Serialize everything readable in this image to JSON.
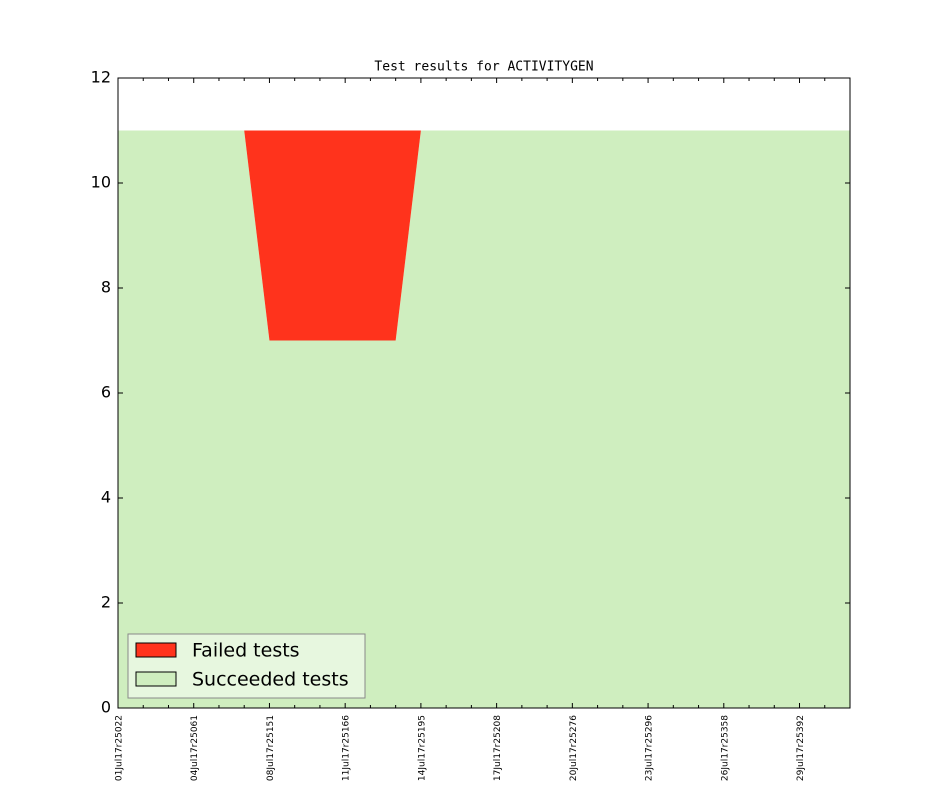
{
  "chart_data": {
    "type": "area",
    "stacked": true,
    "title": "Test results for ACTIVITYGEN",
    "categories": [
      "01Jul17r25022",
      null,
      null,
      "04Jul17r25061",
      null,
      null,
      "08Jul17r25151",
      null,
      null,
      "11Jul17r25166",
      null,
      null,
      "14Jul17r25195",
      null,
      null,
      "17Jul17r25208",
      null,
      null,
      "20Jul17r25276",
      null,
      null,
      "23Jul17r25296",
      null,
      null,
      "26Jul17r25358",
      null,
      null,
      "29Jul17r25392",
      null,
      null
    ],
    "series": [
      {
        "name": "Succeeded tests",
        "color": "#cfeebf",
        "values": [
          11,
          11,
          11,
          11,
          11,
          11,
          7,
          7,
          7,
          7,
          7,
          7,
          11,
          11,
          11,
          11,
          11,
          11,
          11,
          11,
          11,
          11,
          11,
          11,
          11,
          11,
          11,
          11,
          11,
          11
        ]
      },
      {
        "name": "Failed tests",
        "color": "#ff331c",
        "values": [
          0,
          0,
          0,
          0,
          0,
          0,
          4,
          4,
          4,
          4,
          4,
          4,
          0,
          0,
          0,
          0,
          0,
          0,
          0,
          0,
          0,
          0,
          0,
          0,
          0,
          0,
          0,
          0,
          0,
          0
        ]
      }
    ],
    "legend_order": [
      1,
      0
    ],
    "ylim": [
      0,
      12
    ],
    "yticks": [
      0,
      2,
      4,
      6,
      8,
      10,
      12
    ],
    "legend": "lower left",
    "grid": false
  }
}
